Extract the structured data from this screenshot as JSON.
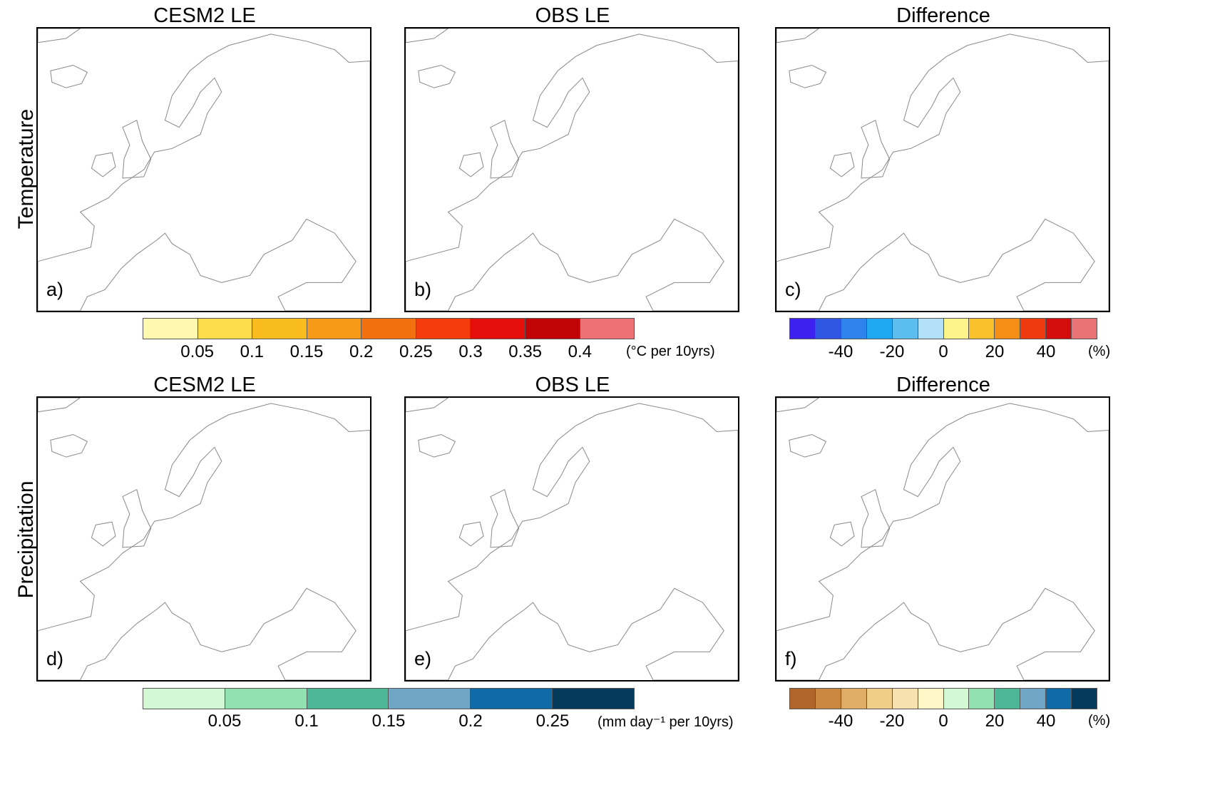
{
  "rows": {
    "temperature_label": "Temperature",
    "precipitation_label": "Precipitation"
  },
  "titles": {
    "col1": "CESM2 LE",
    "col2": "OBS LE",
    "col3": "Difference"
  },
  "panels": {
    "a": "a)",
    "b": "b)",
    "c": "c)",
    "d": "d)",
    "e": "e)",
    "f": "f)"
  },
  "temp_colorbar": {
    "colors": [
      "#fff9b0",
      "#fbdc4a",
      "#f8bd1c",
      "#f79a18",
      "#f3700f",
      "#f43c0c",
      "#e40f0b",
      "#c30407",
      "#ec7276"
    ],
    "ticks": [
      "0.05",
      "0.1",
      "0.15",
      "0.2",
      "0.25",
      "0.3",
      "0.35",
      "0.4"
    ],
    "units": "(°C per 10yrs)"
  },
  "temp_diff_colorbar": {
    "colors": [
      "#3d21ee",
      "#2f57e4",
      "#2f83ec",
      "#1fa8f1",
      "#5cbdef",
      "#b2e1f7",
      "#fdf58c",
      "#f8c12c",
      "#f48e14",
      "#ef3a10",
      "#d20d0b",
      "#e77375"
    ],
    "ticks": [
      "-40",
      "-20",
      "0",
      "20",
      "40"
    ],
    "units": "(%)"
  },
  "precip_colorbar": {
    "colors": [
      "#d2f8d4",
      "#92e2b1",
      "#4cb795",
      "#6fa6c6",
      "#0f6aa8",
      "#043a5c"
    ],
    "ticks": [
      "0.05",
      "0.1",
      "0.15",
      "0.2",
      "0.25"
    ],
    "units": "(mm day⁻¹ per 10yrs)"
  },
  "precip_diff_colorbar": {
    "colors": [
      "#b0652a",
      "#c9873f",
      "#dfad65",
      "#f0cd89",
      "#f7e1ae",
      "#fff6c8",
      "#d2f8d4",
      "#92e2b1",
      "#4cb795",
      "#6fa6c6",
      "#0f6aa8",
      "#043a5c"
    ],
    "ticks": [
      "-40",
      "-20",
      "0",
      "20",
      "40"
    ],
    "units": "(%)"
  }
}
